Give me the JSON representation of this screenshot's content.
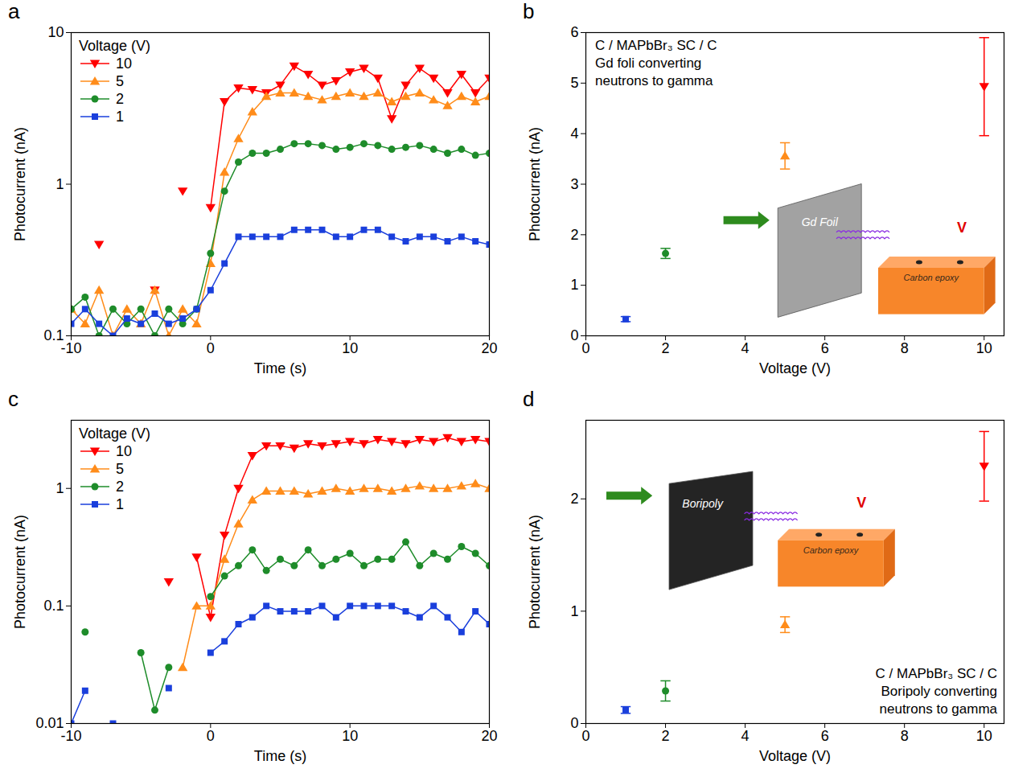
{
  "chart_data": [
    {
      "panel_label": "a",
      "type": "line",
      "x_label": "Time (s)",
      "y_label": "Photocurrent (nA)",
      "legend_title": "Voltage (V)",
      "legend": "top-left",
      "log": "y",
      "xlim": [
        -10,
        20
      ],
      "xticks": [
        -10,
        0,
        10,
        20
      ],
      "ylim": [
        0.1,
        10
      ],
      "yticks": [
        0.1,
        1,
        10
      ],
      "x": [
        -10,
        -9,
        -8,
        -7,
        -6,
        -5,
        -4,
        -3,
        -2,
        -1,
        0,
        1,
        2,
        3,
        4,
        5,
        6,
        7,
        8,
        9,
        10,
        11,
        12,
        13,
        14,
        15,
        16,
        17,
        18,
        19,
        20
      ],
      "series": [
        {
          "name": "10",
          "color": "#ff0000",
          "marker": "triangle-down",
          "values": [
            null,
            null,
            0.4,
            null,
            null,
            null,
            0.2,
            null,
            0.9,
            null,
            0.7,
            3.5,
            4.3,
            4.2,
            4.0,
            4.5,
            6.0,
            5.3,
            4.5,
            4.8,
            5.5,
            5.8,
            5.0,
            2.7,
            4.5,
            5.8,
            5.0,
            4.0,
            5.3,
            4.0,
            5.0
          ]
        },
        {
          "name": "5",
          "color": "#ff8c1a",
          "marker": "triangle-up",
          "values": [
            0.15,
            0.12,
            0.2,
            0.1,
            0.15,
            0.12,
            0.2,
            0.1,
            0.15,
            0.12,
            0.3,
            1.2,
            2.0,
            3.0,
            3.8,
            4.0,
            4.0,
            3.8,
            3.6,
            3.8,
            4.0,
            3.8,
            4.0,
            3.5,
            3.8,
            4.0,
            3.6,
            3.3,
            3.8,
            3.5,
            3.8
          ]
        },
        {
          "name": "2",
          "color": "#1e8c2a",
          "marker": "circle",
          "values": [
            0.15,
            0.18,
            0.1,
            0.15,
            0.12,
            0.15,
            0.1,
            0.15,
            0.12,
            0.15,
            0.35,
            0.9,
            1.4,
            1.6,
            1.6,
            1.7,
            1.85,
            1.85,
            1.8,
            1.7,
            1.75,
            1.85,
            1.8,
            1.7,
            1.75,
            1.8,
            1.7,
            1.6,
            1.7,
            1.55,
            1.6
          ]
        },
        {
          "name": "1",
          "color": "#1a3fdc",
          "marker": "square",
          "values": [
            0.12,
            0.15,
            0.12,
            0.1,
            0.13,
            0.12,
            0.14,
            0.12,
            0.13,
            0.15,
            0.2,
            0.3,
            0.45,
            0.45,
            0.45,
            0.45,
            0.5,
            0.5,
            0.5,
            0.45,
            0.45,
            0.5,
            0.5,
            0.45,
            0.42,
            0.45,
            0.45,
            0.42,
            0.45,
            0.42,
            0.4
          ]
        }
      ]
    },
    {
      "panel_label": "b",
      "type": "scatter",
      "x_label": "Voltage (V)",
      "y_label": "Photocurrent (nA)",
      "annotation": [
        "C / MAPbBr₃ SC / C",
        "Gd foli converting",
        "neutrons to gamma"
      ],
      "inset": {
        "converter": "Gd Foil",
        "detector": "Carbon epoxy",
        "meter": "V"
      },
      "xlim": [
        0,
        10.5
      ],
      "xticks": [
        0,
        2,
        4,
        6,
        8,
        10
      ],
      "ylim": [
        0,
        6
      ],
      "yticks": [
        0,
        1,
        2,
        3,
        4,
        5,
        6
      ],
      "series": [
        {
          "color": "#1a3fdc",
          "marker": "square",
          "x": [
            1
          ],
          "values": [
            0.33
          ],
          "errors": [
            0.05
          ]
        },
        {
          "color": "#1e8c2a",
          "marker": "circle",
          "x": [
            2
          ],
          "values": [
            1.63
          ],
          "errors": [
            0.1
          ]
        },
        {
          "color": "#ff8c1a",
          "marker": "triangle-up",
          "x": [
            5
          ],
          "values": [
            3.56
          ],
          "errors": [
            0.26
          ]
        },
        {
          "color": "#ff0000",
          "marker": "triangle-down",
          "x": [
            10
          ],
          "values": [
            4.93
          ],
          "errors": [
            0.97
          ]
        }
      ]
    },
    {
      "panel_label": "c",
      "type": "line",
      "x_label": "Time (s)",
      "y_label": "Photocurrent (nA)",
      "legend_title": "Voltage (V)",
      "legend": "top-left",
      "log": "y",
      "xlim": [
        -10,
        20
      ],
      "xticks": [
        -10,
        0,
        10,
        20
      ],
      "ylim": [
        0.01,
        3.8
      ],
      "yticks": [
        0.01,
        0.1,
        1
      ],
      "x": [
        -10,
        -9,
        -8,
        -7,
        -6,
        -5,
        -4,
        -3,
        -2,
        -1,
        0,
        1,
        2,
        3,
        4,
        5,
        6,
        7,
        8,
        9,
        10,
        11,
        12,
        13,
        14,
        15,
        16,
        17,
        18,
        19,
        20
      ],
      "series": [
        {
          "name": "10",
          "color": "#ff0000",
          "marker": "triangle-down",
          "values": [
            null,
            null,
            null,
            null,
            null,
            null,
            null,
            0.16,
            null,
            0.26,
            0.08,
            0.4,
            1.0,
            1.9,
            2.3,
            2.3,
            2.2,
            2.4,
            2.3,
            2.4,
            2.5,
            2.4,
            2.6,
            2.5,
            2.4,
            2.6,
            2.5,
            2.7,
            2.5,
            2.6,
            2.5
          ]
        },
        {
          "name": "5",
          "color": "#ff8c1a",
          "marker": "triangle-up",
          "values": [
            null,
            null,
            null,
            null,
            null,
            null,
            null,
            null,
            0.03,
            0.1,
            0.1,
            0.25,
            0.5,
            0.8,
            0.95,
            0.95,
            0.95,
            0.9,
            0.95,
            1.0,
            0.95,
            1.0,
            1.0,
            0.95,
            1.0,
            1.05,
            1.0,
            1.0,
            1.05,
            1.1,
            1.0
          ]
        },
        {
          "name": "2",
          "color": "#1e8c2a",
          "marker": "circle",
          "values": [
            null,
            0.06,
            null,
            null,
            null,
            0.04,
            0.013,
            0.03,
            null,
            null,
            0.12,
            0.18,
            0.22,
            0.3,
            0.2,
            0.25,
            0.22,
            0.3,
            0.22,
            0.25,
            0.28,
            0.22,
            0.25,
            0.25,
            0.35,
            0.22,
            0.28,
            0.25,
            0.32,
            0.28,
            0.22
          ]
        },
        {
          "name": "1",
          "color": "#1a3fdc",
          "marker": "square",
          "values": [
            0.01,
            0.019,
            null,
            0.01,
            null,
            null,
            null,
            0.02,
            null,
            null,
            0.04,
            0.05,
            0.07,
            0.08,
            0.1,
            0.09,
            0.09,
            0.09,
            0.1,
            0.08,
            0.1,
            0.1,
            0.1,
            0.1,
            0.09,
            0.08,
            0.1,
            0.08,
            0.06,
            0.09,
            0.07
          ]
        }
      ]
    },
    {
      "panel_label": "d",
      "type": "scatter",
      "x_label": "Voltage (V)",
      "y_label": "Photocurrent (nA)",
      "annotation": [
        "C / MAPbBr₃ SC / C",
        "Boripoly converting",
        "neutrons to gamma"
      ],
      "inset": {
        "converter": "Boripoly",
        "detector": "Carbon epoxy",
        "meter": "V"
      },
      "xlim": [
        0,
        10.5
      ],
      "xticks": [
        0,
        2,
        4,
        6,
        8,
        10
      ],
      "ylim": [
        0,
        2.7
      ],
      "yticks": [
        0,
        1,
        2
      ],
      "series": [
        {
          "color": "#1a3fdc",
          "marker": "square",
          "x": [
            1
          ],
          "values": [
            0.12
          ],
          "errors": [
            0.03
          ]
        },
        {
          "color": "#1e8c2a",
          "marker": "circle",
          "x": [
            2
          ],
          "values": [
            0.29
          ],
          "errors": [
            0.09
          ]
        },
        {
          "color": "#ff8c1a",
          "marker": "triangle-up",
          "x": [
            5
          ],
          "values": [
            0.88
          ],
          "errors": [
            0.07
          ]
        },
        {
          "color": "#ff0000",
          "marker": "triangle-down",
          "x": [
            10
          ],
          "values": [
            2.29
          ],
          "errors": [
            0.31
          ]
        }
      ]
    }
  ]
}
